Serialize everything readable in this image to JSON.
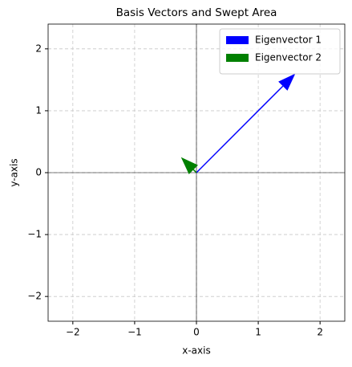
{
  "chart_data": {
    "type": "vector",
    "title": "Basis Vectors and Swept Area",
    "x_label": "x-axis",
    "y_label": "y-axis",
    "series": [
      {
        "name": "Eigenvector 1",
        "color": "#0000ff",
        "x": 1.6,
        "y": 1.6
      },
      {
        "name": "Eigenvector 2",
        "color": "#008000",
        "x": -0.25,
        "y": 0.25
      }
    ],
    "xlim": [
      -2.4,
      2.4
    ],
    "ylim": [
      -2.4,
      2.4
    ],
    "xticks": [
      {
        "value": -2,
        "label": "−2"
      },
      {
        "value": -1,
        "label": "−1"
      },
      0,
      1,
      2
    ],
    "yticks": [
      {
        "value": -2,
        "label": "−2"
      },
      {
        "value": -1,
        "label": "−1"
      },
      0,
      1,
      2
    ],
    "grid": true,
    "legend": "upper right"
  }
}
